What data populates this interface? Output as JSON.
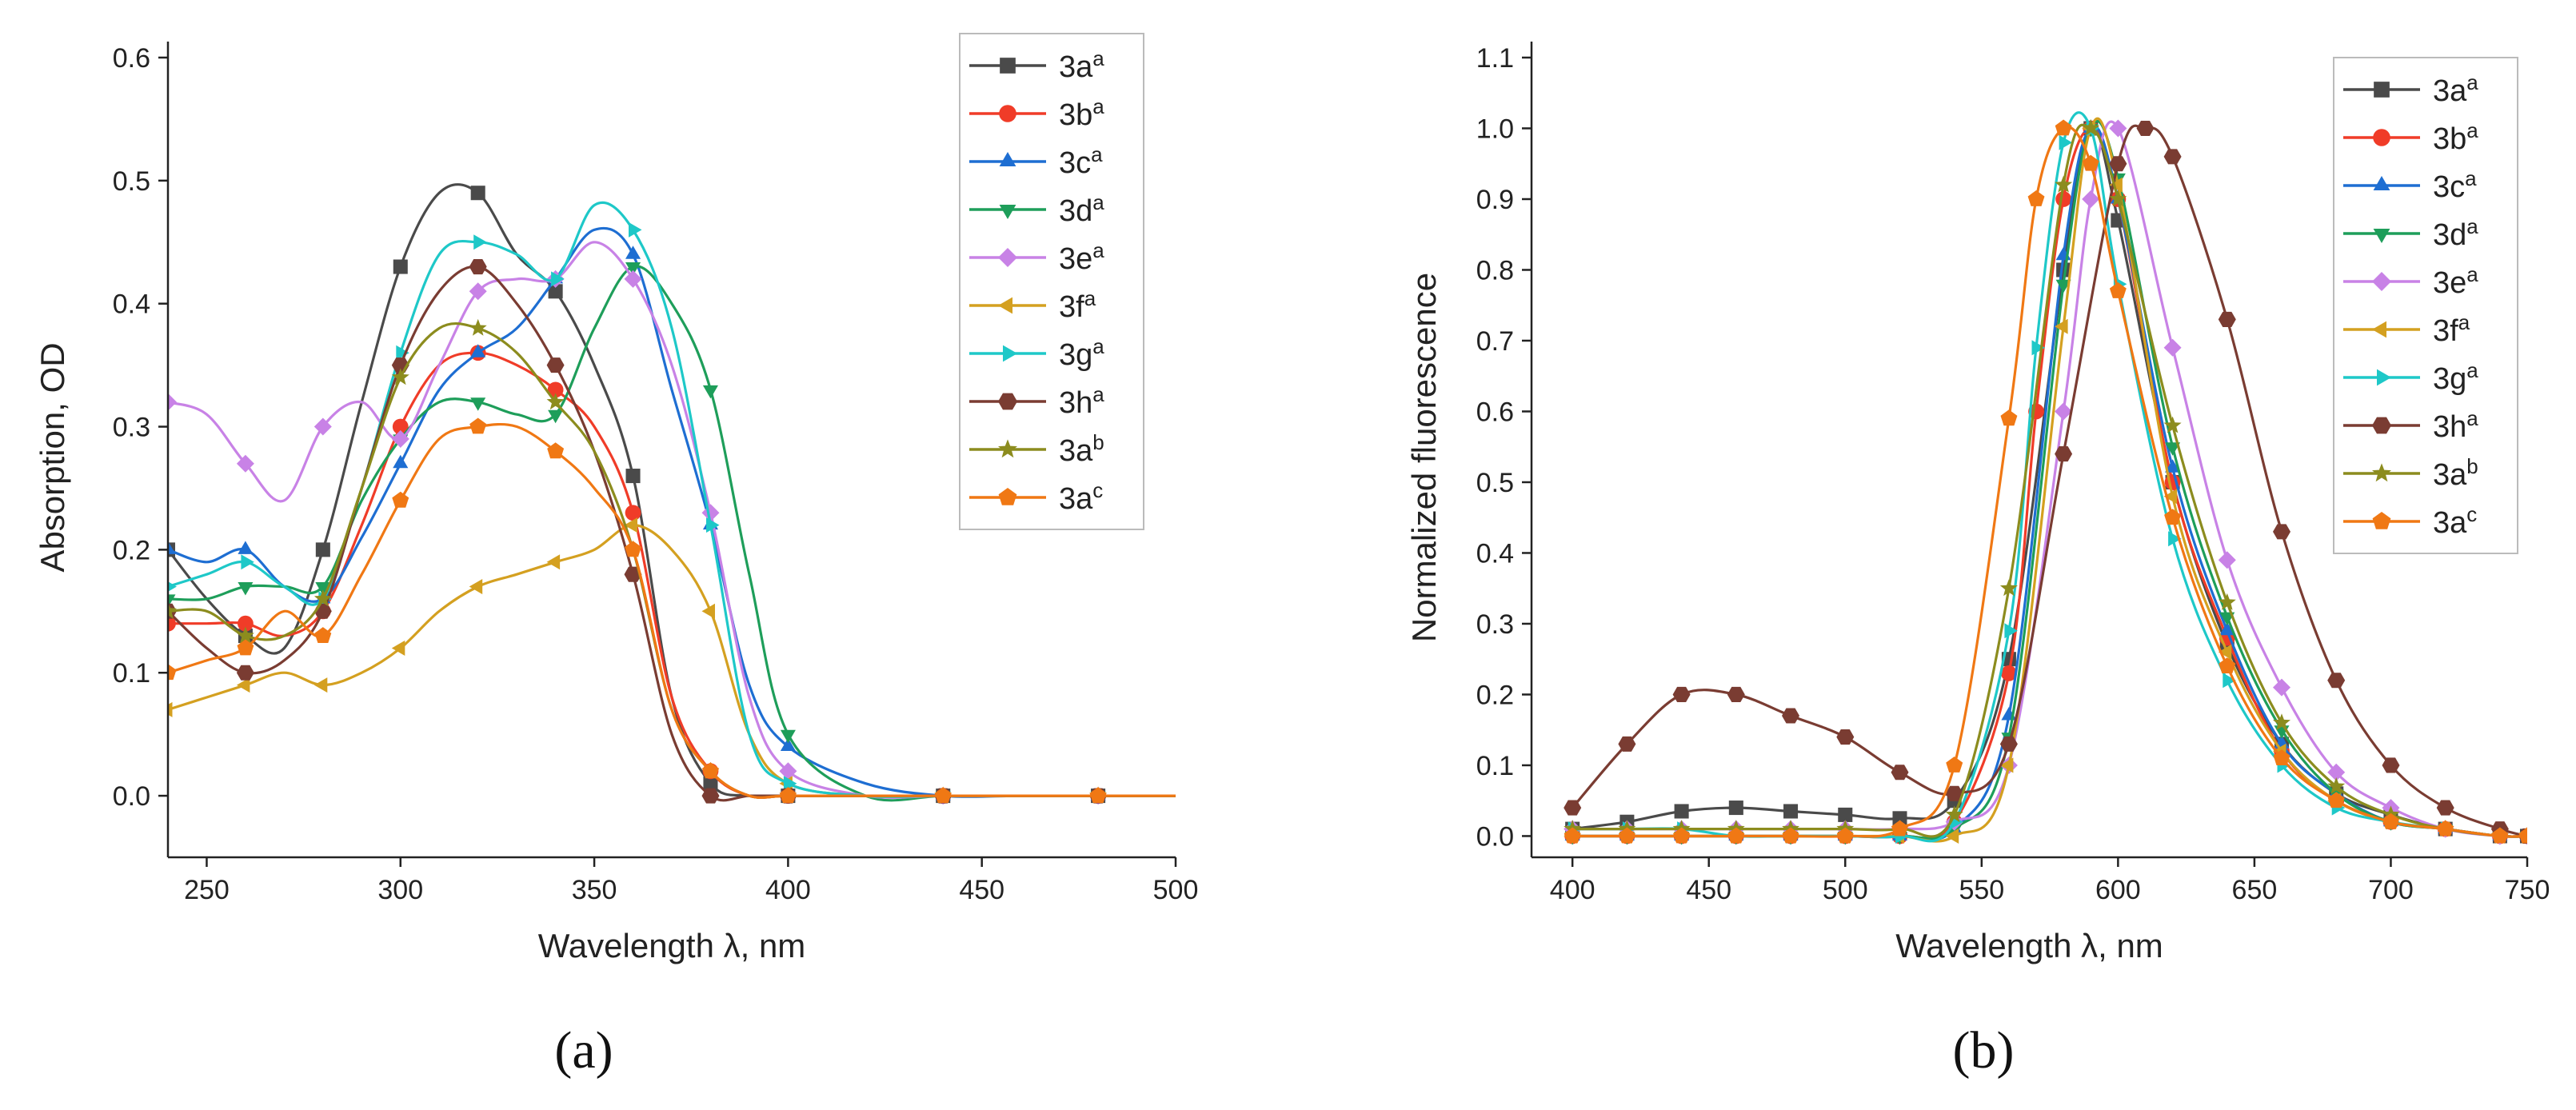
{
  "figure": {
    "panel_labels": [
      "(a)",
      "(b)"
    ]
  },
  "chart_data": [
    {
      "type": "line",
      "panel": "a",
      "xlabel": "Wavelength λ, nm",
      "ylabel": "Absorption, OD",
      "xlim": [
        240,
        500
      ],
      "ylim": [
        -0.05,
        0.6
      ],
      "xticks": [
        250,
        300,
        350,
        400,
        450,
        500
      ],
      "yticks": [
        0.0,
        0.1,
        0.2,
        0.3,
        0.4,
        0.5,
        0.6
      ],
      "legend_position": "top-right",
      "grid": false,
      "series": [
        {
          "name": "3a",
          "sup": "a",
          "color": "#4a4a4a",
          "marker": "square",
          "x": [
            240,
            250,
            260,
            270,
            280,
            290,
            300,
            310,
            320,
            330,
            340,
            350,
            360,
            370,
            380,
            390,
            400,
            420,
            440,
            460,
            480,
            500
          ],
          "y": [
            0.2,
            0.16,
            0.13,
            0.12,
            0.2,
            0.32,
            0.43,
            0.49,
            0.49,
            0.44,
            0.41,
            0.35,
            0.26,
            0.08,
            0.01,
            0.0,
            0.0,
            0.0,
            0.0,
            0.0,
            0.0,
            0.0
          ]
        },
        {
          "name": "3b",
          "sup": "a",
          "color": "#f03c28",
          "marker": "circle",
          "x": [
            240,
            250,
            260,
            270,
            280,
            290,
            300,
            310,
            320,
            330,
            340,
            350,
            360,
            370,
            380,
            390,
            400,
            420,
            440,
            460,
            480,
            500
          ],
          "y": [
            0.14,
            0.14,
            0.14,
            0.13,
            0.15,
            0.22,
            0.3,
            0.35,
            0.36,
            0.35,
            0.33,
            0.3,
            0.23,
            0.08,
            0.02,
            0.0,
            0.0,
            0.0,
            0.0,
            0.0,
            0.0,
            0.0
          ]
        },
        {
          "name": "3c",
          "sup": "a",
          "color": "#1e6ed2",
          "marker": "triangle-up",
          "x": [
            240,
            250,
            260,
            270,
            280,
            290,
            300,
            310,
            320,
            330,
            340,
            350,
            360,
            370,
            380,
            390,
            400,
            420,
            440,
            460,
            480,
            500
          ],
          "y": [
            0.2,
            0.19,
            0.2,
            0.17,
            0.16,
            0.21,
            0.27,
            0.33,
            0.36,
            0.38,
            0.42,
            0.46,
            0.44,
            0.33,
            0.22,
            0.09,
            0.04,
            0.01,
            0.0,
            0.0,
            0.0,
            0.0
          ]
        },
        {
          "name": "3d",
          "sup": "a",
          "color": "#1e9e5a",
          "marker": "triangle-down",
          "x": [
            240,
            250,
            260,
            270,
            280,
            290,
            300,
            310,
            320,
            330,
            340,
            350,
            360,
            370,
            380,
            390,
            400,
            420,
            440,
            460,
            480,
            500
          ],
          "y": [
            0.16,
            0.16,
            0.17,
            0.17,
            0.17,
            0.24,
            0.29,
            0.32,
            0.32,
            0.31,
            0.31,
            0.38,
            0.43,
            0.4,
            0.33,
            0.18,
            0.05,
            0.0,
            0.0,
            0.0,
            0.0,
            0.0
          ]
        },
        {
          "name": "3e",
          "sup": "a",
          "color": "#c882e6",
          "marker": "diamond",
          "x": [
            240,
            250,
            260,
            270,
            280,
            290,
            300,
            310,
            320,
            330,
            340,
            350,
            360,
            370,
            380,
            390,
            400,
            420,
            440,
            460,
            480,
            500
          ],
          "y": [
            0.32,
            0.31,
            0.27,
            0.24,
            0.3,
            0.32,
            0.29,
            0.35,
            0.41,
            0.42,
            0.42,
            0.45,
            0.42,
            0.35,
            0.23,
            0.08,
            0.02,
            0.0,
            0.0,
            0.0,
            0.0,
            0.0
          ]
        },
        {
          "name": "3f",
          "sup": "a",
          "color": "#d4a020",
          "marker": "triangle-left",
          "x": [
            240,
            250,
            260,
            270,
            280,
            290,
            300,
            310,
            320,
            330,
            340,
            350,
            360,
            370,
            380,
            390,
            400,
            420,
            440,
            460,
            480,
            500
          ],
          "y": [
            0.07,
            0.08,
            0.09,
            0.1,
            0.09,
            0.1,
            0.12,
            0.15,
            0.17,
            0.18,
            0.19,
            0.2,
            0.22,
            0.2,
            0.15,
            0.05,
            0.01,
            0.0,
            0.0,
            0.0,
            0.0,
            0.0
          ]
        },
        {
          "name": "3g",
          "sup": "a",
          "color": "#1ec8c8",
          "marker": "triangle-right",
          "x": [
            240,
            250,
            260,
            270,
            280,
            290,
            300,
            310,
            320,
            330,
            340,
            350,
            360,
            370,
            380,
            390,
            400,
            420,
            440,
            460,
            480,
            500
          ],
          "y": [
            0.17,
            0.18,
            0.19,
            0.17,
            0.16,
            0.25,
            0.36,
            0.44,
            0.45,
            0.44,
            0.42,
            0.48,
            0.46,
            0.38,
            0.22,
            0.05,
            0.01,
            0.0,
            0.0,
            0.0,
            0.0,
            0.0
          ]
        },
        {
          "name": "3h",
          "sup": "a",
          "color": "#7a3c32",
          "marker": "hexagon",
          "x": [
            240,
            250,
            260,
            270,
            280,
            290,
            300,
            310,
            320,
            330,
            340,
            350,
            360,
            370,
            380,
            390,
            400,
            420,
            440,
            460,
            480,
            500
          ],
          "y": [
            0.15,
            0.12,
            0.1,
            0.11,
            0.15,
            0.25,
            0.35,
            0.41,
            0.43,
            0.4,
            0.35,
            0.28,
            0.18,
            0.05,
            0.0,
            0.0,
            0.0,
            0.0,
            0.0,
            0.0,
            0.0,
            0.0
          ]
        },
        {
          "name": "3a",
          "sup": "b",
          "color": "#8c8c1e",
          "marker": "star",
          "x": [
            240,
            250,
            260,
            270,
            280,
            290,
            300,
            310,
            320,
            330,
            340,
            350,
            360,
            370,
            380,
            390,
            400,
            420,
            440,
            460,
            480,
            500
          ],
          "y": [
            0.15,
            0.15,
            0.13,
            0.13,
            0.16,
            0.25,
            0.34,
            0.38,
            0.38,
            0.36,
            0.32,
            0.28,
            0.2,
            0.07,
            0.02,
            0.0,
            0.0,
            0.0,
            0.0,
            0.0,
            0.0,
            0.0
          ]
        },
        {
          "name": "3a",
          "sup": "c",
          "color": "#f07814",
          "marker": "pentagon",
          "x": [
            240,
            250,
            260,
            270,
            280,
            290,
            300,
            310,
            320,
            330,
            340,
            350,
            360,
            370,
            380,
            390,
            400,
            420,
            440,
            460,
            480,
            500
          ],
          "y": [
            0.1,
            0.11,
            0.12,
            0.15,
            0.13,
            0.18,
            0.24,
            0.29,
            0.3,
            0.3,
            0.28,
            0.25,
            0.2,
            0.07,
            0.02,
            0.0,
            0.0,
            0.0,
            0.0,
            0.0,
            0.0,
            0.0
          ]
        }
      ]
    },
    {
      "type": "line",
      "panel": "b",
      "xlabel": "Wavelength λ, nm",
      "ylabel": "Normalized fluorescence",
      "xlim": [
        385,
        750
      ],
      "ylim": [
        -0.03,
        1.1
      ],
      "xticks": [
        400,
        450,
        500,
        550,
        600,
        650,
        700,
        750
      ],
      "yticks": [
        0.0,
        0.1,
        0.2,
        0.3,
        0.4,
        0.5,
        0.6,
        0.7,
        0.8,
        0.9,
        1.0,
        1.1
      ],
      "legend_position": "top-right",
      "grid": false,
      "series": [
        {
          "name": "3a",
          "sup": "a",
          "color": "#4a4a4a",
          "marker": "square",
          "x": [
            400,
            420,
            440,
            460,
            480,
            500,
            520,
            540,
            560,
            580,
            590,
            600,
            620,
            640,
            660,
            680,
            700,
            720,
            740,
            750
          ],
          "y": [
            0.01,
            0.02,
            0.035,
            0.04,
            0.035,
            0.03,
            0.025,
            0.05,
            0.25,
            0.8,
            1.0,
            0.87,
            0.5,
            0.27,
            0.13,
            0.06,
            0.03,
            0.01,
            0.0,
            0.0
          ]
        },
        {
          "name": "3b",
          "sup": "a",
          "color": "#f03c28",
          "marker": "circle",
          "x": [
            400,
            420,
            440,
            460,
            480,
            500,
            520,
            540,
            560,
            570,
            580,
            590,
            600,
            620,
            640,
            660,
            680,
            700,
            720,
            740,
            750
          ],
          "y": [
            0.0,
            0.0,
            0.0,
            0.0,
            0.0,
            0.0,
            0.0,
            0.02,
            0.23,
            0.6,
            0.9,
            1.0,
            0.9,
            0.5,
            0.28,
            0.12,
            0.05,
            0.02,
            0.01,
            0.0,
            0.0
          ]
        },
        {
          "name": "3c",
          "sup": "a",
          "color": "#1e6ed2",
          "marker": "triangle-up",
          "x": [
            400,
            420,
            440,
            460,
            480,
            500,
            520,
            540,
            560,
            580,
            590,
            600,
            620,
            640,
            660,
            680,
            700,
            720,
            740,
            750
          ],
          "y": [
            0.0,
            0.0,
            0.0,
            0.0,
            0.0,
            0.0,
            0.0,
            0.01,
            0.17,
            0.82,
            1.0,
            0.9,
            0.52,
            0.29,
            0.13,
            0.06,
            0.02,
            0.01,
            0.0,
            0.0
          ]
        },
        {
          "name": "3d",
          "sup": "a",
          "color": "#1e9e5a",
          "marker": "triangle-down",
          "x": [
            400,
            420,
            440,
            460,
            480,
            500,
            520,
            540,
            560,
            580,
            590,
            600,
            620,
            640,
            660,
            680,
            700,
            720,
            740,
            750
          ],
          "y": [
            0.0,
            0.0,
            0.0,
            0.0,
            0.0,
            0.0,
            0.0,
            0.01,
            0.14,
            0.78,
            1.0,
            0.93,
            0.55,
            0.31,
            0.15,
            0.06,
            0.02,
            0.01,
            0.0,
            0.0
          ]
        },
        {
          "name": "3e",
          "sup": "a",
          "color": "#c882e6",
          "marker": "diamond",
          "x": [
            400,
            420,
            440,
            460,
            480,
            500,
            520,
            540,
            560,
            580,
            590,
            600,
            620,
            640,
            660,
            680,
            700,
            720,
            740,
            750
          ],
          "y": [
            0.01,
            0.01,
            0.01,
            0.01,
            0.01,
            0.01,
            0.01,
            0.02,
            0.1,
            0.6,
            0.9,
            1.0,
            0.69,
            0.39,
            0.21,
            0.09,
            0.04,
            0.01,
            0.0,
            0.0
          ]
        },
        {
          "name": "3f",
          "sup": "a",
          "color": "#d4a020",
          "marker": "triangle-left",
          "x": [
            400,
            420,
            440,
            460,
            480,
            500,
            520,
            540,
            560,
            580,
            590,
            600,
            620,
            640,
            660,
            680,
            700,
            720,
            740,
            750
          ],
          "y": [
            0.0,
            0.0,
            0.0,
            0.0,
            0.0,
            0.0,
            0.0,
            0.0,
            0.1,
            0.72,
            1.0,
            0.92,
            0.48,
            0.26,
            0.12,
            0.05,
            0.02,
            0.01,
            0.0,
            0.0
          ]
        },
        {
          "name": "3g",
          "sup": "a",
          "color": "#1ec8c8",
          "marker": "triangle-right",
          "x": [
            400,
            420,
            440,
            460,
            480,
            500,
            520,
            540,
            560,
            570,
            580,
            590,
            600,
            620,
            640,
            660,
            680,
            700,
            720,
            740,
            750
          ],
          "y": [
            0.01,
            0.01,
            0.01,
            0.0,
            0.0,
            0.0,
            0.0,
            0.02,
            0.29,
            0.69,
            0.98,
            1.0,
            0.78,
            0.42,
            0.22,
            0.1,
            0.04,
            0.02,
            0.01,
            0.0,
            0.0
          ]
        },
        {
          "name": "3h",
          "sup": "a",
          "color": "#7a3c32",
          "marker": "hexagon",
          "x": [
            400,
            420,
            440,
            460,
            480,
            500,
            520,
            540,
            560,
            580,
            600,
            610,
            620,
            640,
            660,
            680,
            700,
            720,
            740,
            750
          ],
          "y": [
            0.04,
            0.13,
            0.2,
            0.2,
            0.17,
            0.14,
            0.09,
            0.06,
            0.13,
            0.54,
            0.95,
            1.0,
            0.96,
            0.73,
            0.43,
            0.22,
            0.1,
            0.04,
            0.01,
            0.0
          ]
        },
        {
          "name": "3a",
          "sup": "b",
          "color": "#8c8c1e",
          "marker": "star",
          "x": [
            400,
            420,
            440,
            460,
            480,
            500,
            520,
            540,
            560,
            580,
            590,
            600,
            620,
            640,
            660,
            680,
            700,
            720,
            740,
            750
          ],
          "y": [
            0.01,
            0.01,
            0.01,
            0.01,
            0.01,
            0.01,
            0.01,
            0.03,
            0.35,
            0.92,
            1.0,
            0.9,
            0.58,
            0.33,
            0.16,
            0.07,
            0.03,
            0.01,
            0.0,
            0.0
          ]
        },
        {
          "name": "3a",
          "sup": "c",
          "color": "#f07814",
          "marker": "pentagon",
          "x": [
            400,
            420,
            440,
            460,
            480,
            500,
            520,
            540,
            560,
            570,
            580,
            590,
            600,
            620,
            640,
            660,
            680,
            700,
            720,
            740,
            750
          ],
          "y": [
            0.0,
            0.0,
            0.0,
            0.0,
            0.0,
            0.0,
            0.01,
            0.1,
            0.59,
            0.9,
            1.0,
            0.95,
            0.77,
            0.45,
            0.24,
            0.11,
            0.05,
            0.02,
            0.01,
            0.0,
            0.0
          ]
        }
      ]
    }
  ]
}
